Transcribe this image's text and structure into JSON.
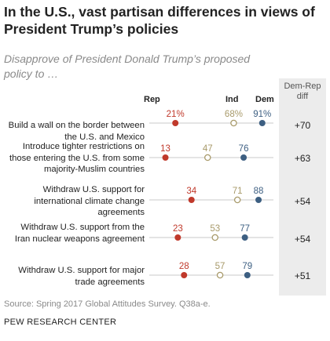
{
  "title": "In the U.S., vast partisan differences in views of President Trump’s policies",
  "subtitle": "Disapprove of President Donald Trump’s proposed policy to …",
  "diff_header": "Dem-Rep diff",
  "source": "Source: Spring 2017 Global Attitudes Survey. Q38a-e.",
  "org": "PEW RESEARCH CENTER",
  "colors": {
    "rep": "#c0392b",
    "ind": "#a89a6a",
    "dem": "#3d5f82",
    "line": "#c8c8c8"
  },
  "chart_data": {
    "type": "dot",
    "xlim": [
      0,
      100
    ],
    "legend": [
      "Rep",
      "Ind",
      "Dem"
    ],
    "rows": [
      {
        "label": "Build a wall on the border between the U.S. and Mexico",
        "rep": 21,
        "ind": 68,
        "dem": 91,
        "rep_label": "21%",
        "ind_label": "68%",
        "dem_label": "91%",
        "diff": "+70"
      },
      {
        "label": "Introduce tighter restrictions on those entering the U.S. from some majority-Muslim countries",
        "rep": 13,
        "ind": 47,
        "dem": 76,
        "rep_label": "13",
        "ind_label": "47",
        "dem_label": "76",
        "diff": "+63"
      },
      {
        "label": "Withdraw U.S. support for international climate change agreements",
        "rep": 34,
        "ind": 71,
        "dem": 88,
        "rep_label": "34",
        "ind_label": "71",
        "dem_label": "88",
        "diff": "+54"
      },
      {
        "label": "Withdraw U.S. support from the Iran nuclear weapons agreement",
        "rep": 23,
        "ind": 53,
        "dem": 77,
        "rep_label": "23",
        "ind_label": "53",
        "dem_label": "77",
        "diff": "+54"
      },
      {
        "label": "Withdraw U.S. support for major trade agreements",
        "rep": 28,
        "ind": 57,
        "dem": 79,
        "rep_label": "28",
        "ind_label": "57",
        "dem_label": "79",
        "diff": "+51"
      }
    ]
  }
}
